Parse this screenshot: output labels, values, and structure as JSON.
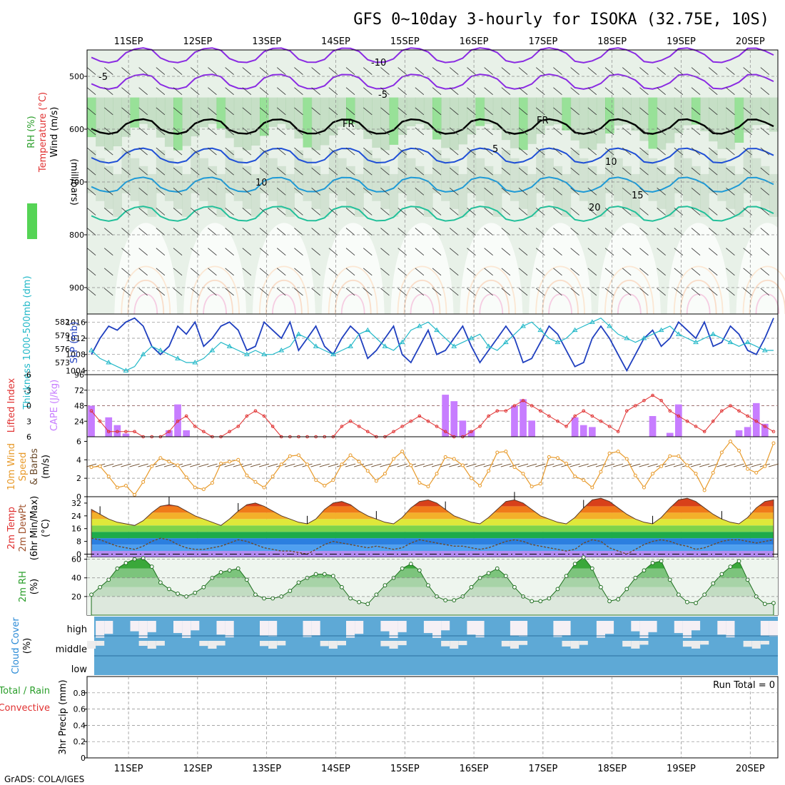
{
  "title": "GFS 0~10day 3-hourly for ISOKA (32.75E, 10S)",
  "footer": "GrADS: COLA/IGES",
  "run_total_label": "Run Total = 0",
  "colors": {
    "slp": "#1f3fbf",
    "thickness": "#22b8c8",
    "lifted": "#e03030",
    "cape": "#c77dff",
    "wind": "#e89a2a",
    "barb": "#6b4a2a",
    "rh2m": "#2a9e2a",
    "cloud": "#5ea9d6",
    "temp_contour": "#22c09a",
    "freezing": "#000000",
    "cold": "#8a2be2"
  },
  "chart_data": {
    "type": "multi-panel meteogram",
    "dates": [
      "11SEP",
      "12SEP",
      "13SEP",
      "14SEP",
      "15SEP",
      "16SEP",
      "17SEP",
      "18SEP",
      "19SEP",
      "20SEP"
    ],
    "step_hours": 3,
    "panels": [
      {
        "id": "profile",
        "type": "heatmap",
        "ylabel_parts": [
          "RH (%)",
          "Temperature (°C)",
          "Wind (m/s)"
        ],
        "ylabel_unit": "(millibars)",
        "y_ticks": [
          "500",
          "600",
          "700",
          "800",
          "900"
        ],
        "ylim": [
          450,
          950
        ],
        "contour_labels": [
          "-10",
          "-5",
          "-5",
          "FR",
          "FR",
          "5",
          "10",
          "10",
          "15",
          "20"
        ]
      },
      {
        "id": "slp_thickness",
        "type": "line",
        "ylabel_left": "Thickness 1000-500mb (dm)",
        "ylabel_right": "SLP (mb)",
        "left_ticks": [
          "582",
          "579",
          "576",
          "573"
        ],
        "right_ticks": [
          "1016",
          "1012",
          "1008",
          "1004"
        ],
        "ylim_slp": [
          1003,
          1018
        ],
        "series": [
          {
            "name": "SLP (mb)",
            "values": [
              1008,
              1012,
              1015,
              1014,
              1016,
              1017,
              1015,
              1010,
              1008,
              1010,
              1015,
              1013,
              1016,
              1010,
              1012,
              1015,
              1016,
              1014,
              1009,
              1010,
              1016,
              1014,
              1012,
              1016,
              1009,
              1012,
              1015,
              1010,
              1008,
              1012,
              1015,
              1013,
              1007,
              1009,
              1012,
              1015,
              1008,
              1006,
              1010,
              1014,
              1008,
              1009,
              1012,
              1015,
              1010,
              1006,
              1009,
              1012,
              1015,
              1012,
              1006,
              1007,
              1011,
              1015,
              1013,
              1009,
              1005,
              1006,
              1012,
              1015,
              1012,
              1008,
              1004,
              1008,
              1012,
              1014,
              1010,
              1012,
              1016,
              1014,
              1012,
              1016,
              1010,
              1011,
              1015,
              1013,
              1009,
              1008,
              1012,
              1017
            ]
          },
          {
            "name": "Thickness 1000-500mb (dm)",
            "values": [
              1009,
              1007,
              1006,
              1005,
              1004,
              1005,
              1008,
              1010,
              1009,
              1008,
              1007,
              1006,
              1006,
              1007,
              1009,
              1011,
              1010,
              1009,
              1008,
              1009,
              1008,
              1008,
              1009,
              1010,
              1013,
              1012,
              1010,
              1009,
              1008,
              1009,
              1010,
              1013,
              1014,
              1012,
              1010,
              1009,
              1011,
              1014,
              1015,
              1016,
              1014,
              1012,
              1010,
              1011,
              1012,
              1013,
              1010,
              1009,
              1011,
              1013,
              1015,
              1016,
              1014,
              1012,
              1011,
              1012,
              1014,
              1015,
              1016,
              1017,
              1015,
              1013,
              1012,
              1011,
              1012,
              1013,
              1014,
              1015,
              1013,
              1012,
              1011,
              1012,
              1013,
              1012,
              1011,
              1010,
              1011,
              1010,
              1009,
              1009
            ]
          }
        ]
      },
      {
        "id": "lifted_cape",
        "type": "bar",
        "ylabel_left": "Lifted Index",
        "ylabel_right": "CAPE (J/kg)",
        "left_ticks": [
          "-6",
          "-3",
          "0",
          "3",
          "6"
        ],
        "right_ticks": [
          "96",
          "72",
          "48",
          "24"
        ],
        "ylim_cape": [
          0,
          96
        ],
        "series": [
          {
            "name": "CAPE (J/kg)",
            "values": [
              48,
              0,
              30,
              18,
              5,
              0,
              0,
              0,
              0,
              10,
              50,
              10,
              0,
              0,
              0,
              0,
              0,
              0,
              0,
              0,
              0,
              0,
              0,
              0,
              0,
              0,
              0,
              0,
              0,
              0,
              0,
              0,
              0,
              0,
              0,
              0,
              0,
              0,
              0,
              0,
              0,
              65,
              55,
              25,
              10,
              0,
              0,
              0,
              0,
              48,
              58,
              25,
              0,
              0,
              0,
              0,
              30,
              18,
              15,
              0,
              0,
              0,
              0,
              0,
              0,
              32,
              0,
              6,
              50,
              0,
              0,
              0,
              0,
              0,
              0,
              10,
              15,
              52,
              20,
              0
            ]
          },
          {
            "name": "Lifted Index",
            "values": [
              1,
              3,
              5,
              5,
              5,
              5,
              6,
              6,
              6,
              5,
              3,
              2,
              4,
              5,
              6,
              6,
              5,
              4,
              2,
              1,
              2,
              4,
              6,
              6,
              6,
              6,
              6,
              6,
              6,
              4,
              3,
              4,
              5,
              6,
              6,
              5,
              4,
              3,
              2,
              3,
              4,
              5,
              6,
              6,
              5,
              4,
              2,
              1,
              1,
              0,
              -1,
              0,
              1,
              2,
              3,
              4,
              2,
              1,
              2,
              3,
              4,
              5,
              1,
              0,
              -1,
              -2,
              -1,
              1,
              2,
              3,
              4,
              5,
              3,
              1,
              0,
              1,
              2,
              3,
              4,
              5
            ]
          }
        ]
      },
      {
        "id": "wind10m",
        "type": "line",
        "ylabel_parts": [
          "10m Wind",
          "Speed",
          "& Barbs"
        ],
        "ylabel_unit": "(m/s)",
        "left_ticks": [
          "6",
          "4",
          "2",
          "0"
        ],
        "ylim": [
          0,
          6.5
        ],
        "series": [
          {
            "name": "10m Wind Speed (m/s)",
            "values": [
              3.2,
              3.3,
              2.2,
              1.0,
              1.2,
              0.2,
              1.6,
              3.3,
              4.2,
              3.8,
              3.4,
              2.1,
              1.0,
              0.8,
              1.5,
              3.6,
              3.8,
              4.0,
              2.3,
              1.6,
              1.0,
              2.2,
              3.5,
              4.4,
              4.5,
              3.5,
              1.8,
              1.2,
              1.8,
              3.5,
              4.5,
              3.8,
              2.8,
              1.7,
              2.5,
              4.1,
              4.9,
              3.4,
              1.5,
              1.1,
              2.5,
              4.3,
              4.1,
              3.4,
              2.0,
              1.2,
              2.8,
              4.8,
              4.9,
              3.2,
              2.5,
              1.1,
              1.4,
              4.3,
              4.2,
              3.6,
              2.2,
              1.8,
              1.0,
              2.7,
              4.7,
              4.9,
              4.1,
              2.3,
              1.0,
              2.5,
              3.3,
              4.4,
              4.4,
              3.4,
              2.5,
              0.7,
              2.6,
              4.8,
              6.0,
              5.0,
              3.0,
              2.6,
              3.3,
              5.8
            ]
          }
        ]
      },
      {
        "id": "temp2m",
        "type": "area",
        "ylabel_parts": [
          "2m Temp",
          "2m DewPt",
          "(6hr Min/Max)"
        ],
        "ylabel_unit": "(°C)",
        "left_ticks": [
          "32",
          "24",
          "16",
          "8",
          "0"
        ],
        "ylim": [
          -2,
          36
        ],
        "series": [
          {
            "name": "2m Temp",
            "values": [
              28,
              25,
              22,
              20,
              19,
              18,
              21,
              26,
              30,
              31,
              30,
              27,
              24,
              22,
              20,
              18,
              22,
              27,
              31,
              32,
              30,
              27,
              24,
              22,
              20,
              19,
              22,
              28,
              32,
              33,
              31,
              27,
              24,
              22,
              20,
              19,
              23,
              29,
              33,
              34,
              32,
              28,
              24,
              22,
              20,
              19,
              23,
              28,
              33,
              34,
              32,
              28,
              24,
              22,
              20,
              19,
              23,
              29,
              34,
              35,
              33,
              29,
              25,
              22,
              20,
              19,
              23,
              29,
              34,
              35,
              33,
              29,
              25,
              22,
              20,
              19,
              23,
              29,
              33,
              34
            ]
          },
          {
            "name": "2m DewPt",
            "values": [
              10,
              9,
              7,
              5,
              4,
              3,
              5,
              8,
              10,
              9,
              6,
              4,
              3,
              3,
              4,
              5,
              7,
              9,
              8,
              6,
              4,
              3,
              2,
              2,
              1,
              0,
              3,
              6,
              8,
              7,
              6,
              5,
              4,
              5,
              4,
              3,
              4,
              7,
              9,
              8,
              7,
              6,
              5,
              5,
              4,
              3,
              4,
              6,
              8,
              9,
              8,
              6,
              5,
              4,
              3,
              2,
              3,
              7,
              9,
              8,
              4,
              2,
              0,
              3,
              6,
              8,
              9,
              8,
              6,
              5,
              3,
              4,
              6,
              8,
              9,
              9,
              8,
              7,
              8,
              9
            ]
          }
        ]
      },
      {
        "id": "rh2m",
        "type": "area",
        "ylabel_parts": [
          "2m RH"
        ],
        "ylabel_unit": "(%)",
        "left_ticks": [
          "60",
          "40",
          "20"
        ],
        "ylim": [
          0,
          62
        ],
        "series": [
          {
            "name": "2m RH (%)",
            "values": [
              22,
              30,
              38,
              50,
              56,
              60,
              61,
              52,
              35,
              28,
              23,
              20,
              24,
              30,
              40,
              46,
              48,
              50,
              38,
              22,
              18,
              18,
              20,
              26,
              35,
              40,
              44,
              44,
              42,
              30,
              18,
              14,
              12,
              22,
              32,
              40,
              50,
              55,
              48,
              32,
              20,
              16,
              16,
              20,
              30,
              40,
              45,
              50,
              42,
              30,
              20,
              15,
              15,
              18,
              28,
              42,
              55,
              62,
              50,
              30,
              15,
              17,
              28,
              40,
              48,
              56,
              58,
              38,
              22,
              14,
              13,
              22,
              34,
              44,
              52,
              58,
              38,
              20,
              12,
              13
            ]
          }
        ]
      },
      {
        "id": "cloud",
        "type": "bar",
        "ylabel_parts": [
          "Cloud Cover"
        ],
        "ylabel_unit": "(%)",
        "level_labels": [
          "high",
          "middle",
          "low"
        ]
      },
      {
        "id": "precip",
        "type": "bar",
        "ylabel_parts": [
          "Total / Rain",
          "Convective"
        ],
        "ylabel_unit": "3hr Precip (mm)",
        "left_ticks": [
          "0.8",
          "0.6",
          "0.4",
          "0.2",
          "0"
        ],
        "ylim": [
          0,
          1
        ],
        "values": [
          0,
          0,
          0,
          0,
          0,
          0,
          0,
          0,
          0,
          0,
          0,
          0,
          0,
          0,
          0,
          0,
          0,
          0,
          0,
          0,
          0,
          0,
          0,
          0,
          0,
          0,
          0,
          0,
          0,
          0,
          0,
          0,
          0,
          0,
          0,
          0,
          0,
          0,
          0,
          0,
          0,
          0,
          0,
          0,
          0,
          0,
          0,
          0,
          0,
          0,
          0,
          0,
          0,
          0,
          0,
          0,
          0,
          0,
          0,
          0,
          0,
          0,
          0,
          0,
          0,
          0,
          0,
          0,
          0,
          0,
          0,
          0,
          0,
          0,
          0,
          0,
          0,
          0,
          0,
          0
        ]
      }
    ]
  }
}
